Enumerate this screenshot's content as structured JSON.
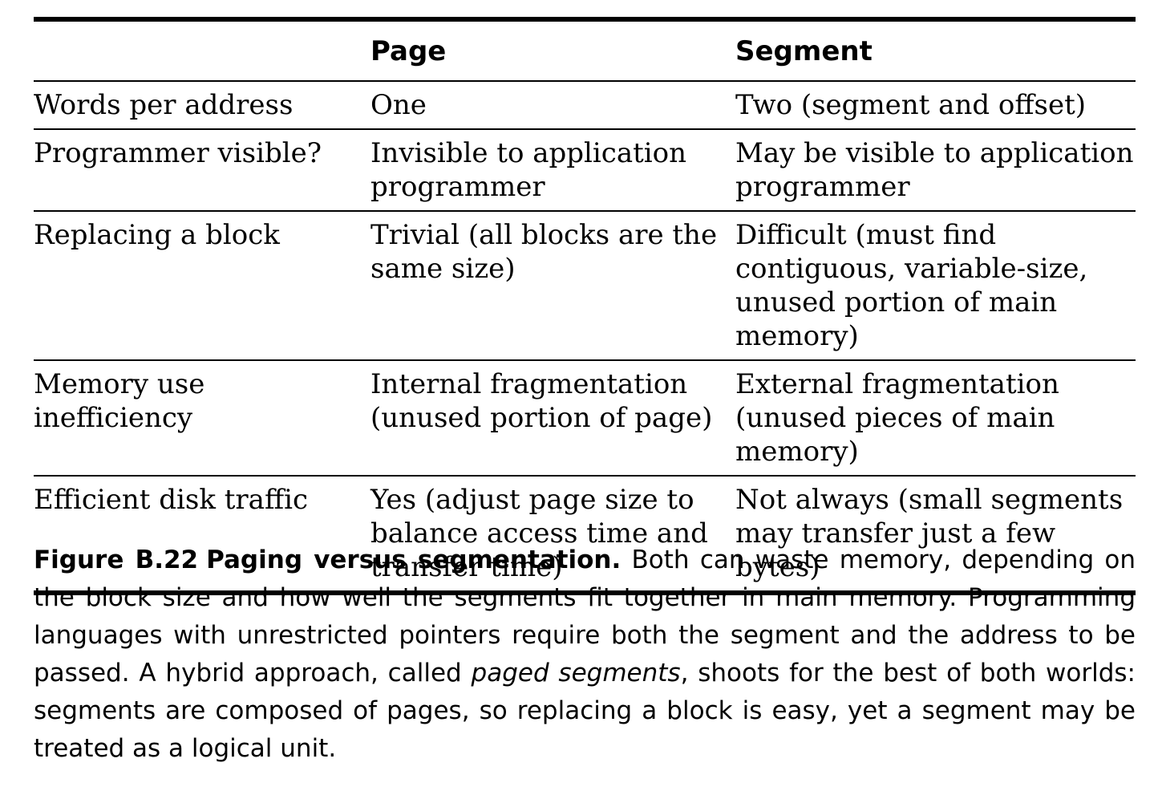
{
  "table": {
    "headers": [
      "",
      "Page",
      "Segment"
    ],
    "rows": [
      {
        "label": "Words per address",
        "page": "One",
        "segment": "Two (segment and offset)"
      },
      {
        "label": "Programmer visible?",
        "page": "Invisible to application programmer",
        "segment": "May be visible to application programmer"
      },
      {
        "label": "Replacing a block",
        "page": "Trivial (all blocks are the same size)",
        "segment": "Difficult (must find contiguous, variable-size, unused portion of main memory)"
      },
      {
        "label": "Memory use inefficiency",
        "page": "Internal fragmentation (unused portion of page)",
        "segment": "External fragmentation (unused pieces of main memory)"
      },
      {
        "label": "Efficient disk traffic",
        "page": "Yes (adjust page size to balance access time and transfer time)",
        "segment": "Not always (small segments may transfer just a few bytes)"
      }
    ]
  },
  "caption": {
    "label": "Figure B.22",
    "title": "Paging versus segmentation.",
    "text_before_italic": " Both can waste memory, depending on the block size and how well the segments fit together in main memory. Programming languages with unrestricted pointers require both the segment and the address to be passed. A hybrid approach, called ",
    "italic": "paged segments",
    "text_after_italic": ", shoots for the best of both worlds: segments are composed of pages, so replacing a block is easy, yet a segment may be treated as a logical unit."
  }
}
